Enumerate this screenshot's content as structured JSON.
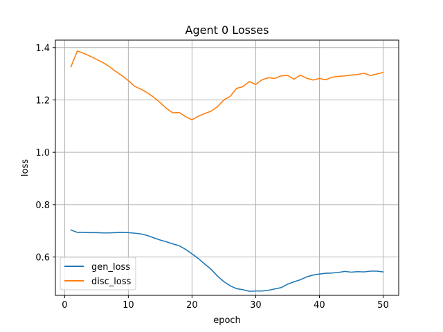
{
  "chart_data": {
    "type": "line",
    "title": "Agent 0 Losses",
    "xlabel": "epoch",
    "ylabel": "loss",
    "xlim": [
      -1.45,
      52.45
    ],
    "ylim": [
      0.4535,
      1.4285
    ],
    "xticks": [
      0,
      10,
      20,
      30,
      40,
      50
    ],
    "yticks": [
      0.6,
      0.8,
      1.0,
      1.2,
      1.4
    ],
    "xtick_labels": [
      "0",
      "10",
      "20",
      "30",
      "40",
      "50"
    ],
    "ytick_labels": [
      "0.6",
      "0.8",
      "1.0",
      "1.2",
      "1.4"
    ],
    "grid": true,
    "legend_position": "lower-left",
    "x": [
      1,
      2,
      3,
      4,
      5,
      6,
      7,
      8,
      9,
      10,
      11,
      12,
      13,
      14,
      15,
      16,
      17,
      18,
      19,
      20,
      21,
      22,
      23,
      24,
      25,
      26,
      27,
      28,
      29,
      30,
      31,
      32,
      33,
      34,
      35,
      36,
      37,
      38,
      39,
      40,
      41,
      42,
      43,
      44,
      45,
      46,
      47,
      48,
      49,
      50
    ],
    "series": [
      {
        "name": "gen_loss",
        "color": "#1f77b4",
        "values": [
          0.703,
          0.694,
          0.694,
          0.693,
          0.693,
          0.692,
          0.692,
          0.693,
          0.694,
          0.693,
          0.691,
          0.688,
          0.682,
          0.673,
          0.665,
          0.658,
          0.65,
          0.643,
          0.629,
          0.612,
          0.594,
          0.573,
          0.553,
          0.527,
          0.506,
          0.49,
          0.479,
          0.475,
          0.469,
          0.47,
          0.47,
          0.473,
          0.478,
          0.483,
          0.496,
          0.505,
          0.513,
          0.524,
          0.531,
          0.535,
          0.538,
          0.539,
          0.541,
          0.545,
          0.542,
          0.544,
          0.543,
          0.546,
          0.546,
          0.543
        ]
      },
      {
        "name": "disc_loss",
        "color": "#ff7f0e",
        "values": [
          1.327,
          1.387,
          1.378,
          1.367,
          1.355,
          1.343,
          1.328,
          1.309,
          1.293,
          1.274,
          1.252,
          1.241,
          1.227,
          1.21,
          1.19,
          1.167,
          1.151,
          1.152,
          1.136,
          1.124,
          1.138,
          1.148,
          1.157,
          1.174,
          1.2,
          1.214,
          1.244,
          1.251,
          1.27,
          1.259,
          1.277,
          1.285,
          1.282,
          1.292,
          1.294,
          1.279,
          1.295,
          1.283,
          1.276,
          1.282,
          1.277,
          1.287,
          1.29,
          1.292,
          1.295,
          1.297,
          1.302,
          1.293,
          1.299,
          1.305
        ]
      }
    ]
  }
}
